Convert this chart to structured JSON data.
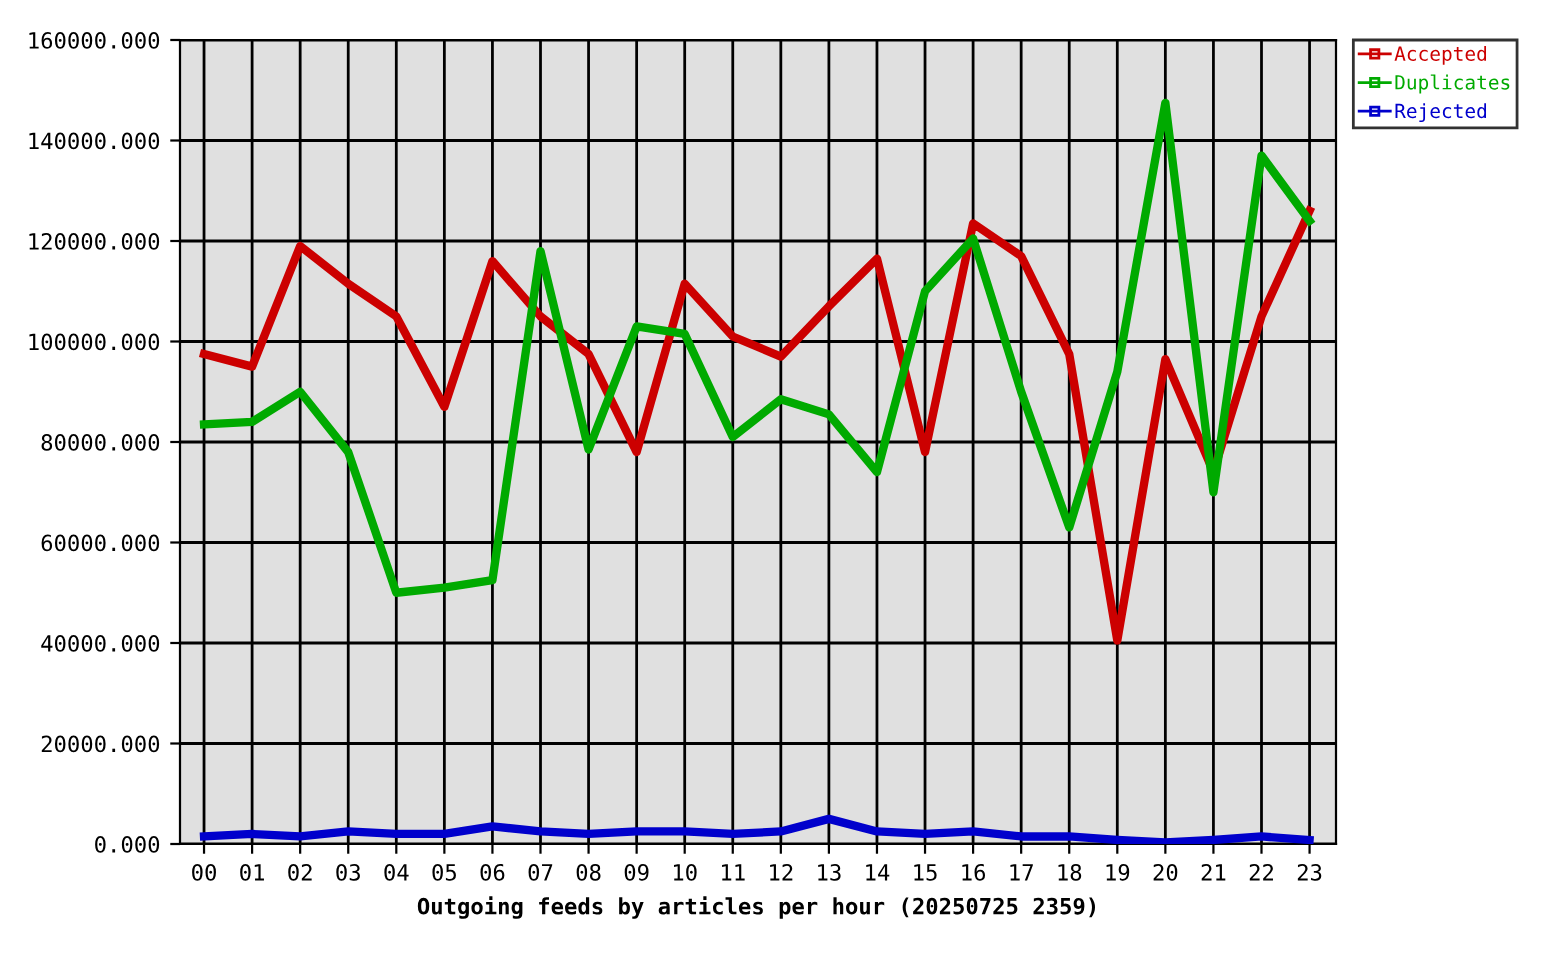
{
  "chart_data": {
    "type": "line",
    "xlabel": "Outgoing feeds by articles per hour (20250725 2359)",
    "categories": [
      "00",
      "01",
      "02",
      "03",
      "04",
      "05",
      "06",
      "07",
      "08",
      "09",
      "10",
      "11",
      "12",
      "13",
      "14",
      "15",
      "16",
      "17",
      "18",
      "19",
      "20",
      "21",
      "22",
      "23"
    ],
    "series": [
      {
        "name": "Accepted",
        "color": "#cc0000",
        "values": [
          97500,
          95000,
          119000,
          111500,
          105000,
          87000,
          116000,
          105000,
          97500,
          78000,
          111500,
          101000,
          97000,
          107000,
          116500,
          78000,
          123500,
          117000,
          97500,
          40500,
          96500,
          74000,
          105000,
          126000
        ]
      },
      {
        "name": "Duplicates",
        "color": "#00aa00",
        "values": [
          83500,
          84000,
          90000,
          78000,
          50000,
          51000,
          52500,
          118000,
          78500,
          103000,
          101500,
          81000,
          88500,
          85500,
          74000,
          110000,
          120500,
          90000,
          63000,
          94000,
          147500,
          70000,
          137000,
          124000
        ]
      },
      {
        "name": "Rejected",
        "color": "#0000cc",
        "values": [
          1500,
          2000,
          1500,
          2500,
          2000,
          2000,
          3500,
          2500,
          2000,
          2500,
          2500,
          2000,
          2500,
          5000,
          2500,
          2000,
          2500,
          1500,
          1500,
          800,
          300,
          800,
          1500,
          800
        ]
      }
    ],
    "ylim": [
      0,
      160000
    ],
    "yticks": [
      {
        "value": 0,
        "label": "0.000"
      },
      {
        "value": 20000,
        "label": "20000.000"
      },
      {
        "value": 40000,
        "label": "40000.000"
      },
      {
        "value": 60000,
        "label": "60000.000"
      },
      {
        "value": 80000,
        "label": "80000.000"
      },
      {
        "value": 100000,
        "label": "100000.000"
      },
      {
        "value": 120000,
        "label": "120000.000"
      },
      {
        "value": 140000,
        "label": "140000.000"
      },
      {
        "value": 160000,
        "label": "160000.000"
      }
    ],
    "grid": true,
    "legend": "top right",
    "line_style": "solid"
  }
}
